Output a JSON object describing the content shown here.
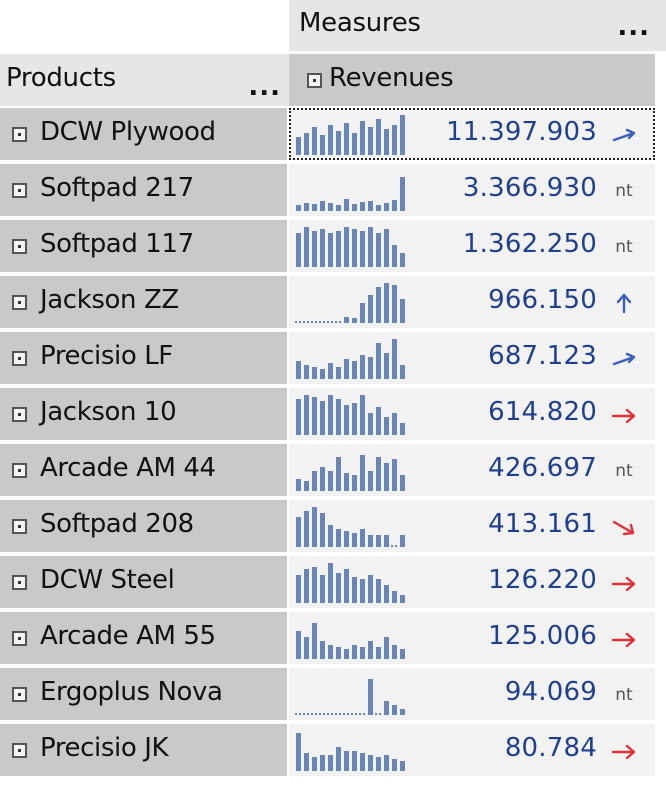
{
  "header": {
    "measures_label": "Measures",
    "products_label": "Products",
    "revenues_label": "Revenues",
    "more_label": "..."
  },
  "colors": {
    "header_bg": "#e6e6e6",
    "member_bg": "#c9c9c9",
    "cell_bg": "#f2f2f2",
    "value_text": "#1f3f8f",
    "sparkline": "#6a86b6",
    "trend_up": "#3a5fbf",
    "trend_down": "#e0303a"
  },
  "rows": [
    {
      "product": "DCW Plywood",
      "revenue": "11.397.903",
      "trend": "up-right",
      "spark": [
        0.45,
        0.55,
        0.7,
        0.5,
        0.75,
        0.6,
        0.8,
        0.55,
        0.85,
        0.7,
        0.9,
        0.65,
        0.75,
        1.0
      ]
    },
    {
      "product": "Softpad 217",
      "revenue": "3.366.930",
      "trend": "nt",
      "spark": [
        0.15,
        0.2,
        0.18,
        0.25,
        0.2,
        0.15,
        0.3,
        0.18,
        0.22,
        0.25,
        0.15,
        0.2,
        0.28,
        0.85
      ]
    },
    {
      "product": "Softpad 117",
      "revenue": "1.362.250",
      "trend": "nt",
      "spark": [
        0.85,
        1.0,
        0.9,
        0.95,
        0.85,
        0.9,
        1.0,
        0.95,
        0.9,
        1.0,
        0.85,
        0.95,
        0.55,
        0.35
      ]
    },
    {
      "product": "Jackson ZZ",
      "revenue": "966.150",
      "trend": "up",
      "spark": [
        0.04,
        0.04,
        0.04,
        0.04,
        0.04,
        0.04,
        0.15,
        0.12,
        0.5,
        0.7,
        0.9,
        1.0,
        0.95,
        0.6
      ]
    },
    {
      "product": "Precisio LF",
      "revenue": "687.123",
      "trend": "up-right",
      "spark": [
        0.45,
        0.35,
        0.3,
        0.25,
        0.4,
        0.3,
        0.5,
        0.45,
        0.6,
        0.55,
        0.9,
        0.65,
        1.0,
        0.35
      ]
    },
    {
      "product": "Jackson 10",
      "revenue": "614.820",
      "trend": "right",
      "spark": [
        0.9,
        1.0,
        0.95,
        0.85,
        1.0,
        0.9,
        0.75,
        0.8,
        1.0,
        0.55,
        0.7,
        0.45,
        0.55,
        0.3
      ]
    },
    {
      "product": "Arcade AM 44",
      "revenue": "426.697",
      "trend": "nt",
      "spark": [
        0.3,
        0.25,
        0.5,
        0.6,
        0.5,
        0.85,
        0.45,
        0.4,
        0.9,
        0.5,
        0.85,
        0.7,
        0.8,
        0.4
      ]
    },
    {
      "product": "Softpad 208",
      "revenue": "413.161",
      "trend": "down-right",
      "spark": [
        0.75,
        0.9,
        1.0,
        0.85,
        0.55,
        0.45,
        0.4,
        0.35,
        0.45,
        0.3,
        0.3,
        0.3,
        0.05,
        0.3
      ]
    },
    {
      "product": "DCW Steel",
      "revenue": "126.220",
      "trend": "right",
      "spark": [
        0.7,
        0.85,
        0.9,
        0.7,
        1.0,
        0.75,
        0.85,
        0.65,
        0.6,
        0.7,
        0.6,
        0.45,
        0.3,
        0.2
      ]
    },
    {
      "product": "Arcade AM 55",
      "revenue": "125.006",
      "trend": "right",
      "spark": [
        0.7,
        0.55,
        0.9,
        0.45,
        0.35,
        0.3,
        0.25,
        0.35,
        0.3,
        0.45,
        0.3,
        0.55,
        0.35,
        0.25
      ]
    },
    {
      "product": "Ergoplus Nova",
      "revenue": "94.069",
      "trend": "nt",
      "spark": [
        0.03,
        0.03,
        0.03,
        0.03,
        0.03,
        0.03,
        0.03,
        0.03,
        0.03,
        0.9,
        0.05,
        0.35,
        0.25,
        0.15
      ]
    },
    {
      "product": "Precisio JK",
      "revenue": "80.784",
      "trend": "right",
      "spark": [
        0.95,
        0.45,
        0.35,
        0.4,
        0.4,
        0.6,
        0.5,
        0.5,
        0.45,
        0.4,
        0.35,
        0.4,
        0.3,
        0.25
      ]
    }
  ]
}
